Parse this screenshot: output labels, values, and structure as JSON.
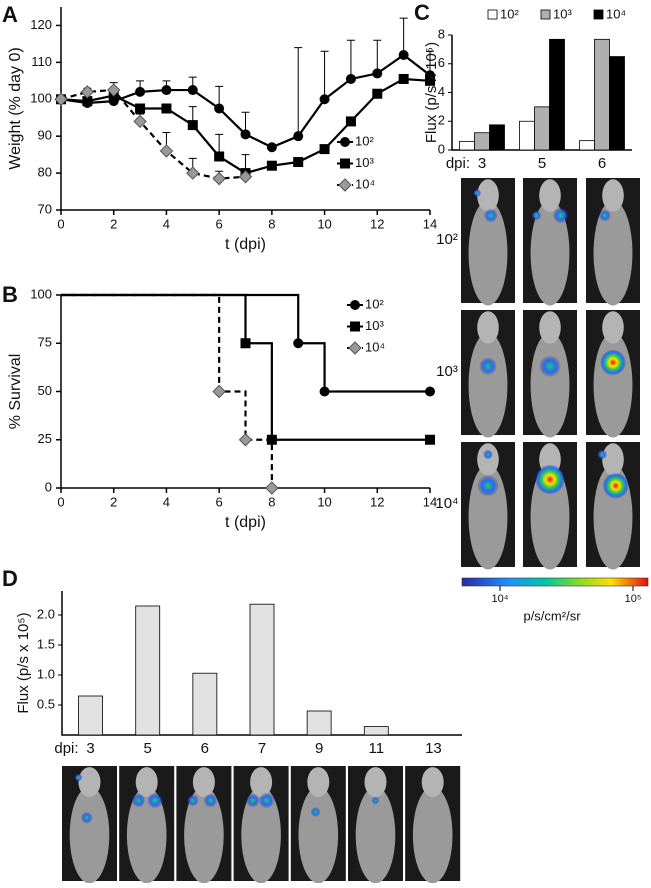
{
  "chart_data": [
    {
      "panel": "A",
      "type": "line",
      "x_label": "t (dpi)",
      "y_label": "Weight  (% day 0)",
      "x": [
        0,
        1,
        2,
        3,
        4,
        5,
        6,
        7,
        8,
        9,
        10,
        11,
        12,
        13,
        14
      ],
      "xlim": [
        0,
        14
      ],
      "xticks": [
        0,
        2,
        4,
        6,
        8,
        10,
        12,
        14
      ],
      "ylim": [
        70,
        125
      ],
      "yticks": [
        70,
        80,
        90,
        100,
        110,
        120
      ],
      "series": [
        {
          "name": "10²",
          "color": "#000000",
          "marker": "circle",
          "dashed": false,
          "values": [
            100,
            99,
            99.5,
            102,
            102.5,
            102.5,
            97.5,
            90.5,
            87,
            90,
            100,
            105.5,
            107,
            112,
            106.5
          ],
          "errors": [
            null,
            1,
            2,
            3,
            2.5,
            3.5,
            6,
            6,
            null,
            24,
            13,
            10.5,
            9,
            10,
            6.5
          ]
        },
        {
          "name": "10³",
          "color": "#000000",
          "marker": "square",
          "dashed": false,
          "values": [
            100,
            99.5,
            101,
            97.5,
            97.5,
            93,
            84.5,
            80,
            82,
            83,
            86.5,
            94,
            101.5,
            105.5,
            105
          ],
          "errors": [
            null,
            null,
            null,
            null,
            null,
            5,
            6,
            5,
            null,
            null,
            null,
            null,
            null,
            null,
            null
          ]
        },
        {
          "name": "10⁴",
          "color": "#999999",
          "marker": "diamond",
          "dashed": true,
          "values": [
            100,
            102,
            102.5,
            94,
            86,
            80,
            78.5,
            79,
            null,
            null,
            null,
            null,
            null,
            null,
            null
          ],
          "errors": [
            null,
            1,
            2,
            2,
            5,
            4,
            2,
            2,
            null,
            null,
            null,
            null,
            null,
            null,
            null
          ]
        }
      ]
    },
    {
      "panel": "B",
      "type": "step",
      "x_label": "t (dpi)",
      "y_label": "% Survival",
      "xlim": [
        0,
        14
      ],
      "xticks": [
        0,
        2,
        4,
        6,
        8,
        10,
        12,
        14
      ],
      "ylim": [
        0,
        100
      ],
      "yticks": [
        0,
        25,
        50,
        75,
        100
      ],
      "series": [
        {
          "name": "10²",
          "color": "#000000",
          "marker": "circle",
          "dashed": false,
          "x": [
            0,
            9,
            10,
            14
          ],
          "values": [
            100,
            75,
            50,
            50
          ]
        },
        {
          "name": "10³",
          "color": "#000000",
          "marker": "square",
          "dashed": false,
          "x": [
            0,
            7,
            8,
            14
          ],
          "values": [
            100,
            75,
            25,
            25
          ]
        },
        {
          "name": "10⁴",
          "color": "#999999",
          "marker": "diamond",
          "dashed": true,
          "x": [
            0,
            6,
            7,
            8
          ],
          "values": [
            100,
            50,
            25,
            0
          ]
        }
      ]
    },
    {
      "panel": "C",
      "type": "grouped_bar",
      "x_label": "dpi:",
      "y_label": "Flux  (p/s x 10⁵)",
      "categories": [
        "3",
        "5",
        "6"
      ],
      "ylim": [
        0,
        8
      ],
      "yticks": [
        0,
        2,
        4,
        6,
        8
      ],
      "series": [
        {
          "name": "10²",
          "color": "#ffffff",
          "values": [
            0.6,
            2.0,
            0.65
          ]
        },
        {
          "name": "10³",
          "color": "#b0b0b0",
          "values": [
            1.2,
            3.0,
            7.7
          ]
        },
        {
          "name": "10⁴",
          "color": "#000000",
          "values": [
            1.75,
            7.7,
            6.5
          ]
        }
      ],
      "image_rows": [
        "10²",
        "10³",
        "10⁴"
      ],
      "colorbar": {
        "labels": [
          "10⁴",
          "10⁵"
        ],
        "unit": "p/s/cm²/sr"
      }
    },
    {
      "panel": "D",
      "type": "bar",
      "x_label": "dpi:",
      "y_label": "Flux  (p/s x 10⁵)",
      "categories": [
        "3",
        "5",
        "6",
        "7",
        "9",
        "11",
        "13"
      ],
      "values": [
        0.65,
        2.15,
        1.03,
        2.18,
        0.4,
        0.14,
        0
      ],
      "color": "#e2e2e2",
      "ylim": [
        0,
        2.4
      ],
      "yticks": [
        0.5,
        {
          "value": 1,
          "label": "1.0"
        },
        1.5,
        {
          "value": 2,
          "label": "2.0"
        }
      ]
    }
  ]
}
